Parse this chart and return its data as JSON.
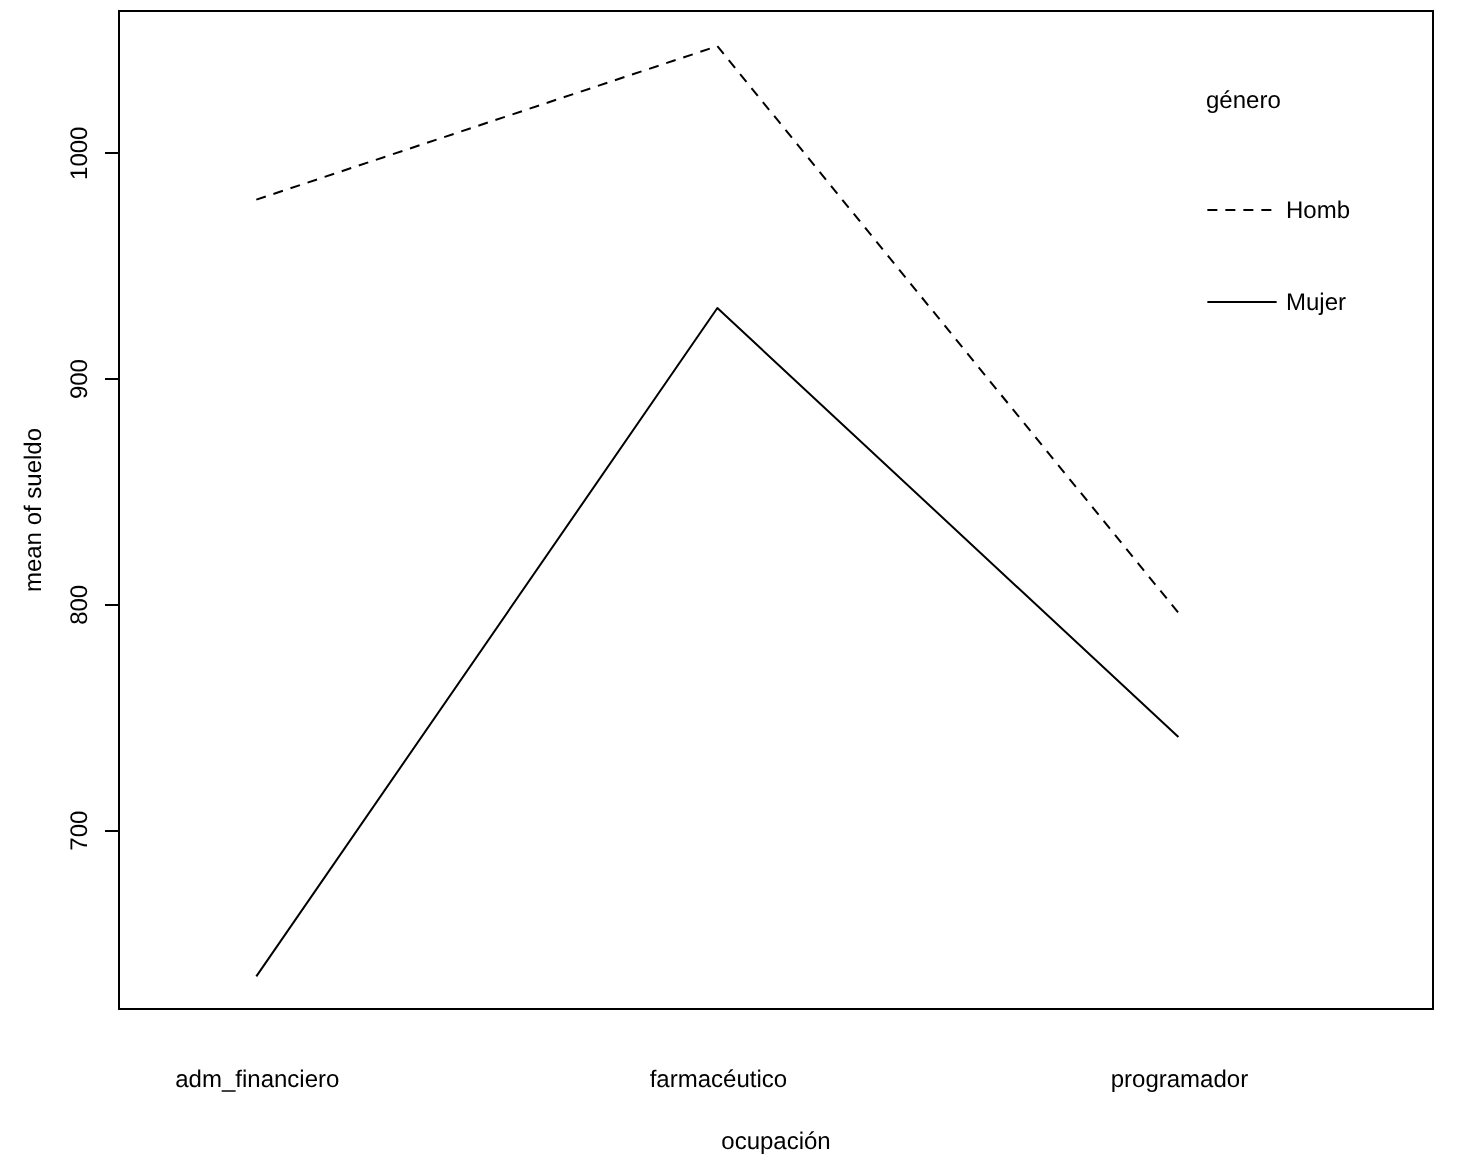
{
  "chart_data": {
    "type": "line",
    "xlabel": "ocupación",
    "ylabel": "mean of sueldo",
    "legend_title": "género",
    "categories": [
      "adm_financiero",
      "farmacéutico",
      "programador"
    ],
    "series": [
      {
        "name": "Homb",
        "color": "#000000",
        "line_style": "dashed",
        "values": [
          979,
          1047,
          796
        ]
      },
      {
        "name": "Mujer",
        "color": "#000000",
        "line_style": "solid",
        "values": [
          635,
          931,
          741
        ]
      }
    ],
    "ylim": [
      621,
      1063
    ],
    "yticks": [
      700,
      800,
      900,
      1000
    ],
    "grid": false,
    "legend": "top right",
    "marker": "none"
  }
}
